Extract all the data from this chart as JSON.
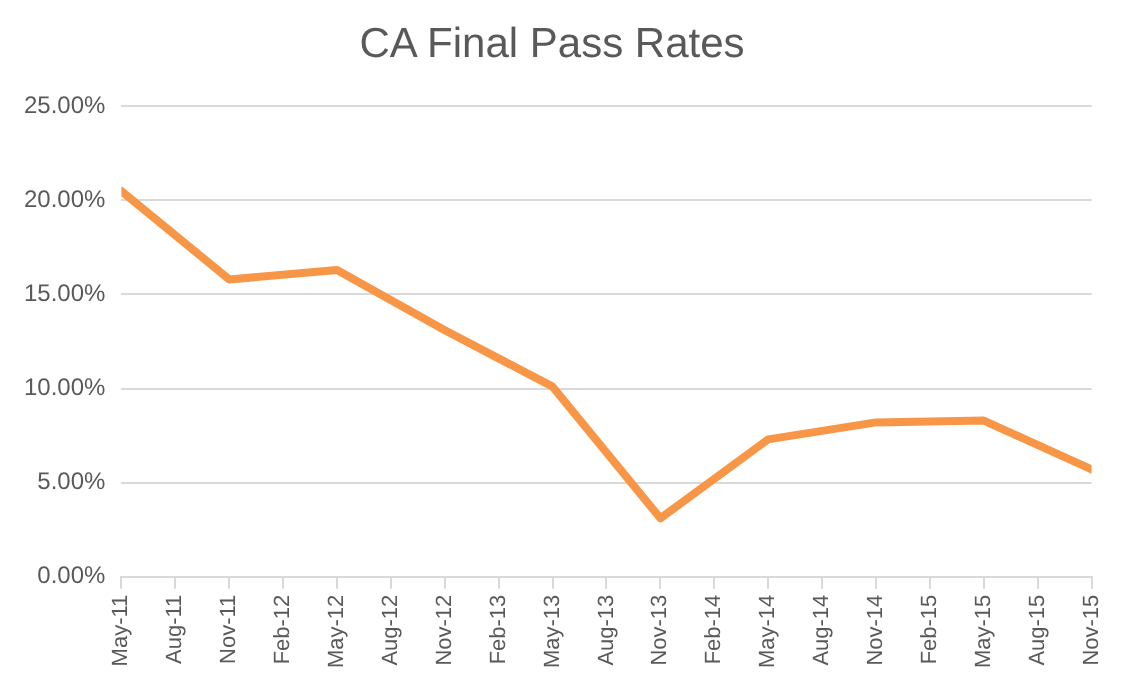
{
  "chart_data": {
    "type": "line",
    "title": "CA Final Pass Rates",
    "x": [
      "2011-05",
      "2011-11",
      "2012-05",
      "2012-11",
      "2013-05",
      "2013-11",
      "2014-05",
      "2014-11",
      "2015-05",
      "2015-11"
    ],
    "series": [
      {
        "color": "#f79646",
        "values": [
          20.5,
          15.8,
          16.3,
          13.1,
          10.1,
          3.1,
          7.3,
          8.2,
          8.3,
          5.7
        ]
      }
    ],
    "xlim": [
      "2011-05",
      "2015-11"
    ],
    "xticks": [
      {
        "value": "2011-05",
        "label": "May-11"
      },
      {
        "value": "2011-08",
        "label": "Aug-11"
      },
      {
        "value": "2011-11",
        "label": "Nov-11"
      },
      {
        "value": "2012-02",
        "label": "Feb-12"
      },
      {
        "value": "2012-05",
        "label": "May-12"
      },
      {
        "value": "2012-08",
        "label": "Aug-12"
      },
      {
        "value": "2012-11",
        "label": "Nov-12"
      },
      {
        "value": "2013-02",
        "label": "Feb-13"
      },
      {
        "value": "2013-05",
        "label": "May-13"
      },
      {
        "value": "2013-08",
        "label": "Aug-13"
      },
      {
        "value": "2013-11",
        "label": "Nov-13"
      },
      {
        "value": "2014-02",
        "label": "Feb-14"
      },
      {
        "value": "2014-05",
        "label": "May-14"
      },
      {
        "value": "2014-08",
        "label": "Aug-14"
      },
      {
        "value": "2014-11",
        "label": "Nov-14"
      },
      {
        "value": "2015-02",
        "label": "Feb-15"
      },
      {
        "value": "2015-05",
        "label": "May-15"
      },
      {
        "value": "2015-08",
        "label": "Aug-15"
      },
      {
        "value": "2015-11",
        "label": "Nov-15"
      }
    ],
    "ylim": [
      0,
      25
    ],
    "yticks": [
      {
        "value": 0,
        "label": "0.00%"
      },
      {
        "value": 5,
        "label": "5.00%"
      },
      {
        "value": 10,
        "label": "10.00%"
      },
      {
        "value": 15,
        "label": "15.00%"
      },
      {
        "value": 20,
        "label": "20.00%"
      },
      {
        "value": 25,
        "label": "25.00%"
      }
    ],
    "grid": "y",
    "legend": false,
    "marker": "none",
    "line_style": "solid"
  }
}
